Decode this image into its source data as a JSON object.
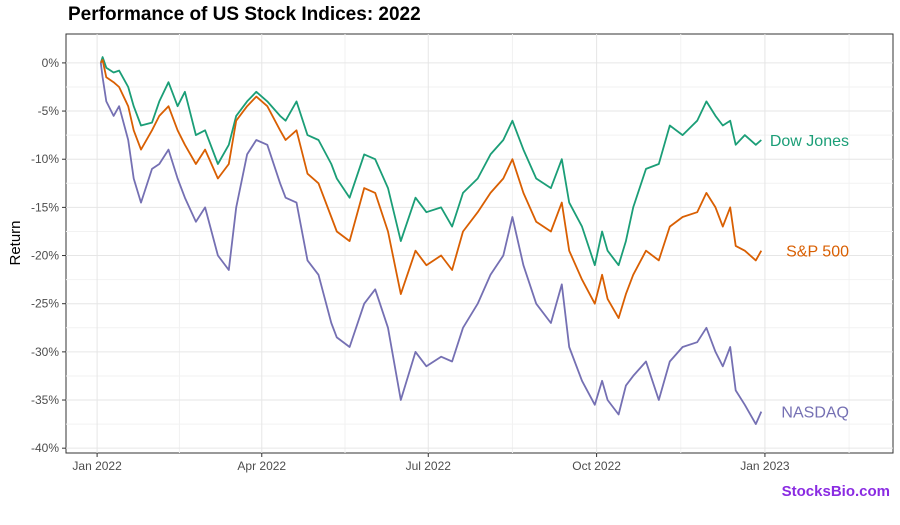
{
  "page": {
    "title": "Performance of US Stock Indices: 2022",
    "watermark": "StocksBio.com"
  },
  "chart_data": {
    "type": "line",
    "title": "Performance of US Stock Indices: 2022",
    "xlabel": "",
    "ylabel": "Return",
    "xlim": [
      "2021-12-15",
      "2023-03-12"
    ],
    "ylim": [
      -40.5,
      3
    ],
    "x_ticks": [
      {
        "date": "2022-01-01",
        "label": "Jan 2022"
      },
      {
        "date": "2022-04-01",
        "label": "Apr 2022"
      },
      {
        "date": "2022-07-01",
        "label": "Jul 2022"
      },
      {
        "date": "2022-10-01",
        "label": "Oct 2022"
      },
      {
        "date": "2023-01-01",
        "label": "Jan 2023"
      }
    ],
    "y_ticks": [
      {
        "value": 0,
        "label": "0%"
      },
      {
        "value": -5,
        "label": "-5%"
      },
      {
        "value": -10,
        "label": "-10%"
      },
      {
        "value": -15,
        "label": "-15%"
      },
      {
        "value": -20,
        "label": "-20%"
      },
      {
        "value": -25,
        "label": "-25%"
      },
      {
        "value": -30,
        "label": "-30%"
      },
      {
        "value": -35,
        "label": "-35%"
      },
      {
        "value": -40,
        "label": "-40%"
      }
    ],
    "grid": true,
    "legend": "direct labels at line ends",
    "series": [
      {
        "name": "Dow Jones",
        "color": "#1b9e77",
        "label_value": -8.0,
        "points": [
          [
            "2022-01-03",
            0.0
          ],
          [
            "2022-01-04",
            0.6
          ],
          [
            "2022-01-06",
            -0.5
          ],
          [
            "2022-01-10",
            -1.0
          ],
          [
            "2022-01-13",
            -0.8
          ],
          [
            "2022-01-18",
            -2.5
          ],
          [
            "2022-01-21",
            -4.5
          ],
          [
            "2022-01-25",
            -6.5
          ],
          [
            "2022-01-31",
            -6.2
          ],
          [
            "2022-02-04",
            -4.0
          ],
          [
            "2022-02-09",
            -2.0
          ],
          [
            "2022-02-14",
            -4.5
          ],
          [
            "2022-02-18",
            -3.0
          ],
          [
            "2022-02-24",
            -7.5
          ],
          [
            "2022-03-01",
            -7.0
          ],
          [
            "2022-03-08",
            -10.5
          ],
          [
            "2022-03-14",
            -8.5
          ],
          [
            "2022-03-18",
            -5.5
          ],
          [
            "2022-03-24",
            -4.0
          ],
          [
            "2022-03-29",
            -3.0
          ],
          [
            "2022-04-04",
            -4.0
          ],
          [
            "2022-04-11",
            -5.5
          ],
          [
            "2022-04-14",
            -6.0
          ],
          [
            "2022-04-20",
            -4.0
          ],
          [
            "2022-04-26",
            -7.5
          ],
          [
            "2022-05-02",
            -8.0
          ],
          [
            "2022-05-09",
            -10.5
          ],
          [
            "2022-05-12",
            -12.0
          ],
          [
            "2022-05-19",
            -14.0
          ],
          [
            "2022-05-27",
            -9.5
          ],
          [
            "2022-06-02",
            -10.0
          ],
          [
            "2022-06-09",
            -13.0
          ],
          [
            "2022-06-16",
            -18.5
          ],
          [
            "2022-06-24",
            -14.0
          ],
          [
            "2022-06-30",
            -15.5
          ],
          [
            "2022-07-08",
            -15.0
          ],
          [
            "2022-07-14",
            -17.0
          ],
          [
            "2022-07-20",
            -13.5
          ],
          [
            "2022-07-28",
            -12.0
          ],
          [
            "2022-08-04",
            -9.5
          ],
          [
            "2022-08-11",
            -8.0
          ],
          [
            "2022-08-16",
            -6.0
          ],
          [
            "2022-08-22",
            -9.0
          ],
          [
            "2022-08-29",
            -12.0
          ],
          [
            "2022-09-06",
            -13.0
          ],
          [
            "2022-09-12",
            -10.0
          ],
          [
            "2022-09-16",
            -14.5
          ],
          [
            "2022-09-23",
            -17.0
          ],
          [
            "2022-09-30",
            -21.0
          ],
          [
            "2022-10-04",
            -17.5
          ],
          [
            "2022-10-07",
            -19.5
          ],
          [
            "2022-10-13",
            -21.0
          ],
          [
            "2022-10-17",
            -18.5
          ],
          [
            "2022-10-21",
            -15.0
          ],
          [
            "2022-10-28",
            -11.0
          ],
          [
            "2022-11-04",
            -10.5
          ],
          [
            "2022-11-10",
            -6.5
          ],
          [
            "2022-11-17",
            -7.5
          ],
          [
            "2022-11-25",
            -6.0
          ],
          [
            "2022-11-30",
            -4.0
          ],
          [
            "2022-12-05",
            -5.5
          ],
          [
            "2022-12-09",
            -6.5
          ],
          [
            "2022-12-13",
            -6.0
          ],
          [
            "2022-12-16",
            -8.5
          ],
          [
            "2022-12-21",
            -7.5
          ],
          [
            "2022-12-27",
            -8.5
          ],
          [
            "2022-12-30",
            -8.0
          ]
        ]
      },
      {
        "name": "S&P 500",
        "color": "#d95f02",
        "label_value": -19.5,
        "points": [
          [
            "2022-01-03",
            0.0
          ],
          [
            "2022-01-04",
            0.3
          ],
          [
            "2022-01-06",
            -1.5
          ],
          [
            "2022-01-10",
            -2.0
          ],
          [
            "2022-01-13",
            -2.5
          ],
          [
            "2022-01-18",
            -4.5
          ],
          [
            "2022-01-21",
            -7.0
          ],
          [
            "2022-01-25",
            -9.0
          ],
          [
            "2022-01-31",
            -7.0
          ],
          [
            "2022-02-04",
            -5.5
          ],
          [
            "2022-02-09",
            -4.5
          ],
          [
            "2022-02-14",
            -7.0
          ],
          [
            "2022-02-18",
            -8.5
          ],
          [
            "2022-02-24",
            -10.5
          ],
          [
            "2022-03-01",
            -9.0
          ],
          [
            "2022-03-08",
            -12.0
          ],
          [
            "2022-03-14",
            -10.5
          ],
          [
            "2022-03-18",
            -6.0
          ],
          [
            "2022-03-24",
            -4.5
          ],
          [
            "2022-03-29",
            -3.5
          ],
          [
            "2022-04-04",
            -4.5
          ],
          [
            "2022-04-11",
            -7.0
          ],
          [
            "2022-04-14",
            -8.0
          ],
          [
            "2022-04-20",
            -7.0
          ],
          [
            "2022-04-26",
            -11.5
          ],
          [
            "2022-05-02",
            -12.5
          ],
          [
            "2022-05-09",
            -16.0
          ],
          [
            "2022-05-12",
            -17.5
          ],
          [
            "2022-05-19",
            -18.5
          ],
          [
            "2022-05-27",
            -13.0
          ],
          [
            "2022-06-02",
            -13.5
          ],
          [
            "2022-06-09",
            -17.5
          ],
          [
            "2022-06-16",
            -24.0
          ],
          [
            "2022-06-24",
            -19.5
          ],
          [
            "2022-06-30",
            -21.0
          ],
          [
            "2022-07-08",
            -20.0
          ],
          [
            "2022-07-14",
            -21.5
          ],
          [
            "2022-07-20",
            -17.5
          ],
          [
            "2022-07-28",
            -15.5
          ],
          [
            "2022-08-04",
            -13.5
          ],
          [
            "2022-08-11",
            -12.0
          ],
          [
            "2022-08-16",
            -10.0
          ],
          [
            "2022-08-22",
            -13.5
          ],
          [
            "2022-08-29",
            -16.5
          ],
          [
            "2022-09-06",
            -17.5
          ],
          [
            "2022-09-12",
            -14.5
          ],
          [
            "2022-09-16",
            -19.5
          ],
          [
            "2022-09-23",
            -22.5
          ],
          [
            "2022-09-30",
            -25.0
          ],
          [
            "2022-10-04",
            -22.0
          ],
          [
            "2022-10-07",
            -24.5
          ],
          [
            "2022-10-13",
            -26.5
          ],
          [
            "2022-10-17",
            -24.0
          ],
          [
            "2022-10-21",
            -22.0
          ],
          [
            "2022-10-28",
            -19.5
          ],
          [
            "2022-11-04",
            -20.5
          ],
          [
            "2022-11-10",
            -17.0
          ],
          [
            "2022-11-17",
            -16.0
          ],
          [
            "2022-11-25",
            -15.5
          ],
          [
            "2022-11-30",
            -13.5
          ],
          [
            "2022-12-05",
            -15.0
          ],
          [
            "2022-12-09",
            -17.0
          ],
          [
            "2022-12-13",
            -15.0
          ],
          [
            "2022-12-16",
            -19.0
          ],
          [
            "2022-12-21",
            -19.5
          ],
          [
            "2022-12-27",
            -20.5
          ],
          [
            "2022-12-30",
            -19.5
          ]
        ]
      },
      {
        "name": "NASDAQ",
        "color": "#7570b3",
        "label_value": -36.2,
        "points": [
          [
            "2022-01-03",
            0.0
          ],
          [
            "2022-01-04",
            -1.5
          ],
          [
            "2022-01-06",
            -4.0
          ],
          [
            "2022-01-10",
            -5.5
          ],
          [
            "2022-01-13",
            -4.5
          ],
          [
            "2022-01-18",
            -8.0
          ],
          [
            "2022-01-21",
            -12.0
          ],
          [
            "2022-01-25",
            -14.5
          ],
          [
            "2022-01-31",
            -11.0
          ],
          [
            "2022-02-04",
            -10.5
          ],
          [
            "2022-02-09",
            -9.0
          ],
          [
            "2022-02-14",
            -12.0
          ],
          [
            "2022-02-18",
            -14.0
          ],
          [
            "2022-02-24",
            -16.5
          ],
          [
            "2022-03-01",
            -15.0
          ],
          [
            "2022-03-08",
            -20.0
          ],
          [
            "2022-03-14",
            -21.5
          ],
          [
            "2022-03-18",
            -15.0
          ],
          [
            "2022-03-24",
            -9.5
          ],
          [
            "2022-03-29",
            -8.0
          ],
          [
            "2022-04-04",
            -8.5
          ],
          [
            "2022-04-11",
            -12.5
          ],
          [
            "2022-04-14",
            -14.0
          ],
          [
            "2022-04-20",
            -14.5
          ],
          [
            "2022-04-26",
            -20.5
          ],
          [
            "2022-05-02",
            -22.0
          ],
          [
            "2022-05-09",
            -27.0
          ],
          [
            "2022-05-12",
            -28.5
          ],
          [
            "2022-05-19",
            -29.5
          ],
          [
            "2022-05-27",
            -25.0
          ],
          [
            "2022-06-02",
            -23.5
          ],
          [
            "2022-06-09",
            -27.5
          ],
          [
            "2022-06-16",
            -35.0
          ],
          [
            "2022-06-24",
            -30.0
          ],
          [
            "2022-06-30",
            -31.5
          ],
          [
            "2022-07-08",
            -30.5
          ],
          [
            "2022-07-14",
            -31.0
          ],
          [
            "2022-07-20",
            -27.5
          ],
          [
            "2022-07-28",
            -25.0
          ],
          [
            "2022-08-04",
            -22.0
          ],
          [
            "2022-08-11",
            -20.0
          ],
          [
            "2022-08-16",
            -16.0
          ],
          [
            "2022-08-22",
            -21.0
          ],
          [
            "2022-08-29",
            -25.0
          ],
          [
            "2022-09-06",
            -27.0
          ],
          [
            "2022-09-12",
            -23.0
          ],
          [
            "2022-09-16",
            -29.5
          ],
          [
            "2022-09-23",
            -33.0
          ],
          [
            "2022-09-30",
            -35.5
          ],
          [
            "2022-10-04",
            -33.0
          ],
          [
            "2022-10-07",
            -35.0
          ],
          [
            "2022-10-13",
            -36.5
          ],
          [
            "2022-10-17",
            -33.5
          ],
          [
            "2022-10-21",
            -32.5
          ],
          [
            "2022-10-28",
            -31.0
          ],
          [
            "2022-11-04",
            -35.0
          ],
          [
            "2022-11-10",
            -31.0
          ],
          [
            "2022-11-17",
            -29.5
          ],
          [
            "2022-11-25",
            -29.0
          ],
          [
            "2022-11-30",
            -27.5
          ],
          [
            "2022-12-05",
            -30.0
          ],
          [
            "2022-12-09",
            -31.5
          ],
          [
            "2022-12-13",
            -29.5
          ],
          [
            "2022-12-16",
            -34.0
          ],
          [
            "2022-12-21",
            -35.5
          ],
          [
            "2022-12-27",
            -37.5
          ],
          [
            "2022-12-30",
            -36.2
          ]
        ]
      }
    ]
  }
}
